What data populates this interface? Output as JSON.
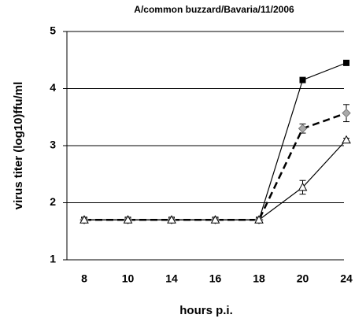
{
  "chart_data": {
    "type": "line",
    "title": "A/common buzzard/Bavaria/11/2006",
    "x_label": "hours p.i.",
    "y_label": "virus titer (log10)ffu/ml",
    "categories": [
      "8",
      "10",
      "14",
      "16",
      "18",
      "20",
      "24"
    ],
    "series": [
      {
        "color": "#000000",
        "marker": "square",
        "dash": false,
        "values": [
          1.7,
          1.7,
          1.7,
          1.7,
          1.7,
          4.15,
          4.45
        ],
        "errors": [
          null,
          null,
          null,
          null,
          null,
          null,
          null
        ]
      },
      {
        "color": "#000000",
        "marker": "diamond",
        "dash": true,
        "values": [
          1.7,
          1.7,
          1.7,
          1.7,
          1.7,
          3.3,
          3.57
        ],
        "errors": [
          null,
          null,
          null,
          null,
          null,
          0.08,
          0.15
        ]
      },
      {
        "color": "#000000",
        "marker": "triangle",
        "dash": false,
        "values": [
          1.7,
          1.7,
          1.7,
          1.7,
          1.7,
          2.27,
          3.1
        ],
        "errors": [
          null,
          null,
          null,
          null,
          null,
          0.12,
          0.03
        ]
      }
    ],
    "ylim": [
      1,
      5
    ],
    "yticks": [
      1,
      2,
      3,
      4,
      5
    ],
    "grid": true
  }
}
